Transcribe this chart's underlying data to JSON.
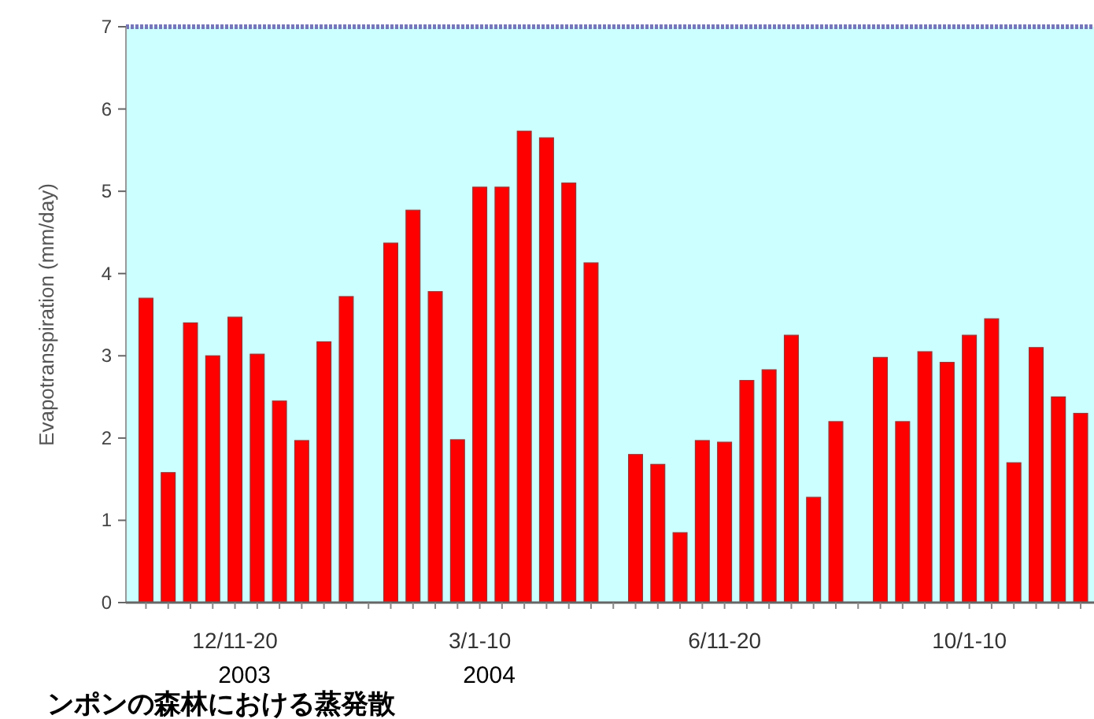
{
  "chart_data": {
    "type": "bar",
    "ylabel": "Evapotranspiration (mm/day)",
    "categories": [
      null,
      null,
      null,
      null,
      "12/11-20\n2003",
      null,
      null,
      null,
      null,
      null,
      null,
      null,
      null,
      null,
      null,
      "3/1-10\n2004",
      null,
      null,
      null,
      null,
      null,
      null,
      null,
      null,
      null,
      null,
      "6/11-20",
      null,
      null,
      null,
      null,
      null,
      null,
      null,
      null,
      null,
      null,
      "10/1-10",
      null,
      null,
      null,
      null,
      null
    ],
    "values": [
      3.7,
      1.58,
      3.4,
      3.0,
      3.47,
      3.02,
      2.45,
      1.97,
      3.17,
      3.72,
      null,
      4.37,
      4.77,
      3.78,
      1.98,
      5.05,
      5.05,
      5.73,
      5.65,
      5.1,
      4.13,
      null,
      1.8,
      1.68,
      0.85,
      1.97,
      1.95,
      2.7,
      2.83,
      3.25,
      1.28,
      2.2,
      null,
      2.98,
      2.2,
      3.05,
      2.92,
      3.25,
      3.45,
      1.7,
      3.1,
      2.5,
      2.3
    ],
    "color": "#ff0000",
    "ylim": [
      0,
      7
    ],
    "yticks": [
      0,
      1,
      2,
      3,
      4,
      5,
      6,
      7
    ],
    "annotations": [
      "ンポンの森林における蒸発散"
    ]
  }
}
